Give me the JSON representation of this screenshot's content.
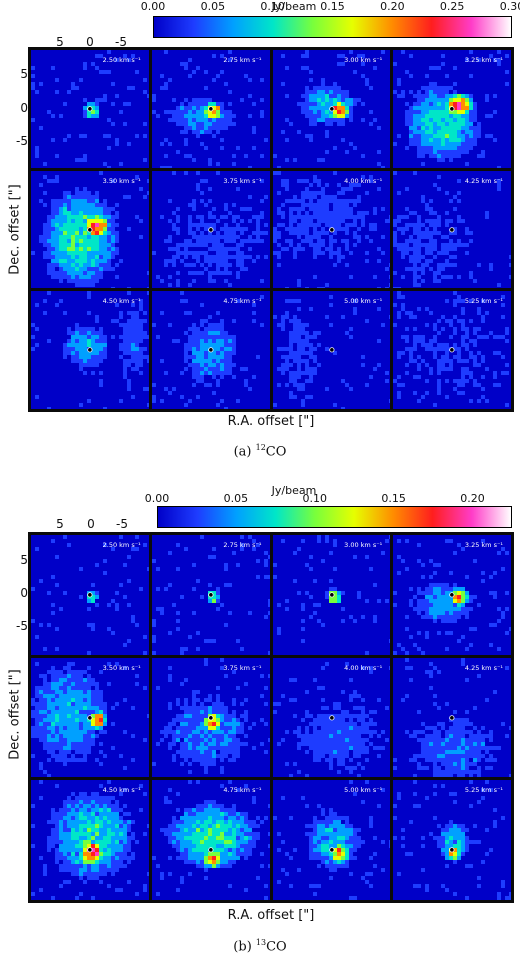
{
  "figures": [
    {
      "id": "a",
      "colorbar": {
        "unit": "Jy/beam",
        "ticks": [
          "0.00",
          "0.05",
          "0.10",
          "0.15",
          "0.20",
          "0.25",
          "0.30"
        ],
        "range": [
          0.0,
          0.3
        ]
      },
      "x_ticks": [
        "5",
        "0",
        "-5"
      ],
      "y_ticks": [
        "5",
        "0",
        "-5"
      ],
      "xlabel": "R.A. offset [\"]",
      "ylabel": "Dec. offset [\"]",
      "caption_prefix": "(a) ",
      "caption_sup": "12",
      "caption_suffix": "CO",
      "channels": [
        "2.50 km s⁻¹",
        "2.75 km s⁻¹",
        "3.00 km s⁻¹",
        "3.25 km s⁻¹",
        "3.50 km s⁻¹",
        "3.75 km s⁻¹",
        "4.00 km s⁻¹",
        "4.25 km s⁻¹",
        "4.50 km s⁻¹",
        "4.75 km s⁻¹",
        "5.00 km s⁻¹",
        "5.25 km s⁻¹"
      ]
    },
    {
      "id": "b",
      "colorbar": {
        "unit": "Jy/beam",
        "ticks": [
          "0.00",
          "0.05",
          "0.10",
          "0.15",
          "0.20"
        ],
        "range": [
          0.0,
          0.225
        ]
      },
      "x_ticks": [
        "5",
        "0",
        "-5"
      ],
      "y_ticks": [
        "5",
        "0",
        "-5"
      ],
      "xlabel": "R.A. offset [\"]",
      "ylabel": "Dec. offset [\"]",
      "caption_prefix": "(b) ",
      "caption_sup": "13",
      "caption_suffix": "CO",
      "channels": [
        "2.50 km s⁻¹",
        "2.75 km s⁻¹",
        "3.00 km s⁻¹",
        "3.25 km s⁻¹",
        "3.50 km s⁻¹",
        "3.75 km s⁻¹",
        "4.00 km s⁻¹",
        "4.25 km s⁻¹",
        "4.50 km s⁻¹",
        "4.75 km s⁻¹",
        "5.00 km s⁻¹",
        "5.25 km s⁻¹"
      ]
    }
  ],
  "colormap": [
    "#0000c8",
    "#1e3cff",
    "#00a0ff",
    "#00e6c8",
    "#78ff3c",
    "#e6ff00",
    "#ff8c00",
    "#ff1e1e",
    "#ff3cc8",
    "#ffffff"
  ]
}
